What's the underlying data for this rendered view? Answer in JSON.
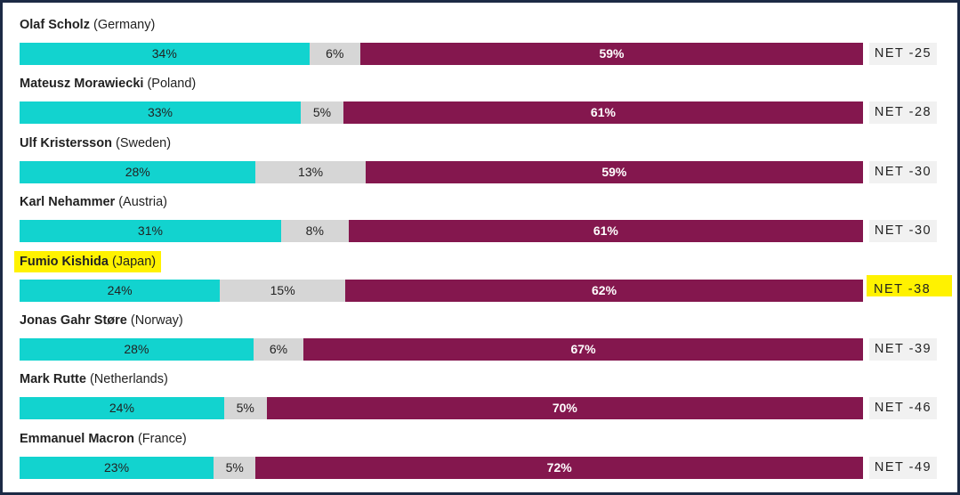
{
  "colors": {
    "approve": "#12d3cf",
    "dont_know": "#d6d6d6",
    "disapprove": "#84174e",
    "highlight": "#fff200",
    "frame": "#1c2a45"
  },
  "chart_data": {
    "type": "bar",
    "orientation": "horizontal",
    "stacked": true,
    "series": [
      {
        "key": "approve",
        "values": [
          34,
          33,
          28,
          31,
          24,
          28,
          24,
          23
        ]
      },
      {
        "key": "dont_know",
        "values": [
          6,
          5,
          13,
          8,
          15,
          6,
          5,
          5
        ]
      },
      {
        "key": "disapprove",
        "values": [
          59,
          61,
          59,
          61,
          62,
          67,
          70,
          72
        ]
      }
    ],
    "rows": [
      {
        "name": "Olaf Scholz",
        "country": "(Germany)",
        "approve": 34,
        "dont_know": 6,
        "disapprove": 59,
        "approve_label": "34%",
        "dont_know_label": "6%",
        "disapprove_label": "59%",
        "net": "NET -25",
        "highlight": false
      },
      {
        "name": "Mateusz Morawiecki",
        "country": "(Poland)",
        "approve": 33,
        "dont_know": 5,
        "disapprove": 61,
        "approve_label": "33%",
        "dont_know_label": "5%",
        "disapprove_label": "61%",
        "net": "NET -28",
        "highlight": false
      },
      {
        "name": "Ulf Kristersson",
        "country": "(Sweden)",
        "approve": 28,
        "dont_know": 13,
        "disapprove": 59,
        "approve_label": "28%",
        "dont_know_label": "13%",
        "disapprove_label": "59%",
        "net": "NET -30",
        "highlight": false
      },
      {
        "name": "Karl Nehammer",
        "country": "(Austria)",
        "approve": 31,
        "dont_know": 8,
        "disapprove": 61,
        "approve_label": "31%",
        "dont_know_label": "8%",
        "disapprove_label": "61%",
        "net": "NET -30",
        "highlight": false
      },
      {
        "name": "Fumio Kishida",
        "country": "(Japan)",
        "approve": 24,
        "dont_know": 15,
        "disapprove": 62,
        "approve_label": "24%",
        "dont_know_label": "15%",
        "disapprove_label": "62%",
        "net": "NET -38",
        "highlight": true
      },
      {
        "name": "Jonas Gahr Støre",
        "country": "(Norway)",
        "approve": 28,
        "dont_know": 6,
        "disapprove": 67,
        "approve_label": "28%",
        "dont_know_label": "6%",
        "disapprove_label": "67%",
        "net": "NET -39",
        "highlight": false
      },
      {
        "name": "Mark Rutte",
        "country": "(Netherlands)",
        "approve": 24,
        "dont_know": 5,
        "disapprove": 70,
        "approve_label": "24%",
        "dont_know_label": "5%",
        "disapprove_label": "70%",
        "net": "NET -46",
        "highlight": false
      },
      {
        "name": "Emmanuel Macron",
        "country": "(France)",
        "approve": 23,
        "dont_know": 5,
        "disapprove": 72,
        "approve_label": "23%",
        "dont_know_label": "5%",
        "disapprove_label": "72%",
        "net": "NET -49",
        "highlight": false
      }
    ]
  }
}
